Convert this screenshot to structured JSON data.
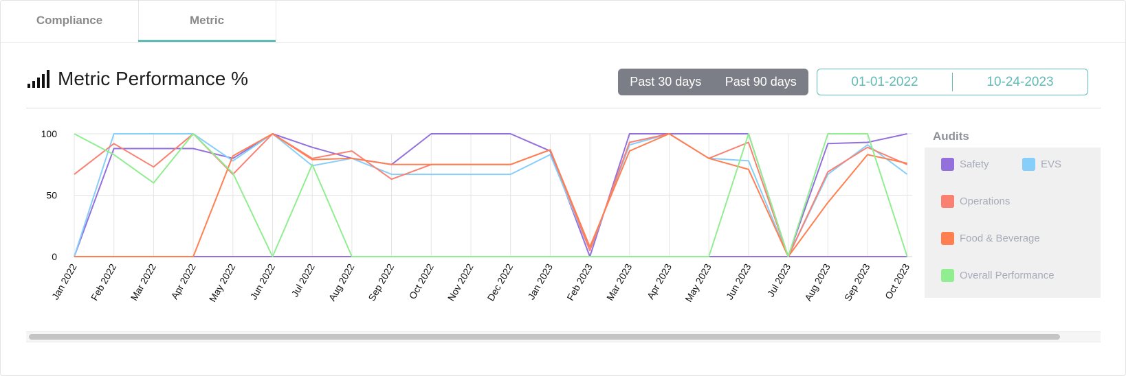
{
  "tabs": [
    {
      "label": "Compliance",
      "active": false
    },
    {
      "label": "Metric",
      "active": true
    }
  ],
  "header": {
    "icon": "signal-bars-icon",
    "title": "Metric Performance %"
  },
  "range_toggle": [
    "Past 30 days",
    "Past 90 days"
  ],
  "date_range": {
    "start": "01-01-2022",
    "end": "10-24-2023"
  },
  "legend": {
    "title": "Audits",
    "items": [
      {
        "label": "Safety",
        "color": "#9370db"
      },
      {
        "label": "EVS",
        "color": "#87cefa"
      },
      {
        "label": "Operations",
        "color": "#fa8072"
      },
      {
        "label": "Food & Beverage",
        "color": "#ff7f50"
      },
      {
        "label": "Overall Performance",
        "color": "#90ee90"
      }
    ]
  },
  "chart_data": {
    "type": "line",
    "categories": [
      "Jan 2022",
      "Feb 2022",
      "Mar 2022",
      "Apr 2022",
      "May 2022",
      "Jun 2022",
      "Jul 2022",
      "Aug 2022",
      "Sep 2022",
      "Oct 2022",
      "Nov 2022",
      "Dec 2022",
      "Jan 2023",
      "Feb 2023",
      "Mar 2023",
      "Apr 2023",
      "May 2023",
      "Jun 2023",
      "Jul 2023",
      "Aug 2023",
      "Sep 2023",
      "Oct 2023"
    ],
    "y_ticks": [
      0,
      50,
      100
    ],
    "ylim": [
      0,
      100
    ],
    "grid": true,
    "legend_position": "right",
    "series": [
      {
        "name": "Safety",
        "color": "#9370db",
        "values": [
          0,
          88,
          88,
          88,
          80,
          100,
          89,
          80,
          75,
          100,
          100,
          100,
          86,
          0,
          100,
          100,
          100,
          100,
          0,
          92,
          93,
          100
        ],
        "zero_values": [
          0,
          0,
          0,
          0,
          0,
          0,
          0,
          0,
          0,
          0,
          0,
          0,
          0,
          0,
          0,
          0,
          0,
          0,
          0,
          0,
          0,
          0
        ]
      },
      {
        "name": "EVS",
        "color": "#87cefa",
        "values": [
          0,
          100,
          100,
          100,
          78,
          100,
          74,
          80,
          67,
          67,
          67,
          67,
          83,
          5,
          91,
          100,
          80,
          78,
          0,
          67,
          91,
          67
        ]
      },
      {
        "name": "Operations",
        "color": "#fa8072",
        "values": [
          67,
          92,
          73,
          100,
          67,
          100,
          80,
          86,
          63,
          75,
          75,
          75,
          87,
          5,
          93,
          100,
          80,
          93,
          0,
          69,
          89,
          75
        ]
      },
      {
        "name": "Food & Beverage",
        "color": "#ff7f50",
        "values": [
          0,
          0,
          0,
          0,
          82,
          100,
          79,
          80,
          75,
          75,
          75,
          75,
          87,
          8,
          86,
          100,
          80,
          71,
          0,
          44,
          83,
          76
        ]
      },
      {
        "name": "Overall Performance",
        "color": "#90ee90",
        "values": [
          100,
          83,
          60,
          100,
          68,
          0,
          75,
          0,
          0,
          0,
          0,
          0,
          0,
          0,
          0,
          0,
          0,
          100,
          0,
          100,
          100,
          0
        ]
      }
    ]
  }
}
